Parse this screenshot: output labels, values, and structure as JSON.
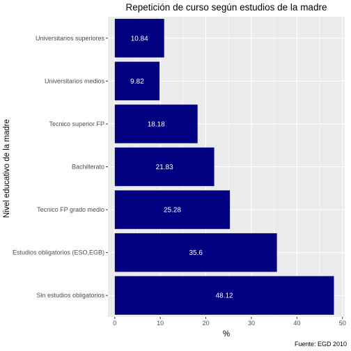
{
  "chart_data": {
    "type": "bar",
    "orientation": "horizontal",
    "title": "Repetición de curso según estudios de la madre",
    "xlabel": "%",
    "ylabel": "Nivel educativo de la madre",
    "caption": "Fuente: EGD 2010",
    "categories": [
      "Universitarios superiores",
      "Universitarios medios",
      "Tecnico superior FP",
      "Bachillerato",
      "Tecnico FP grado medio",
      "Estudios obligatorios (ESO,EGB)",
      "Sin estudios obligatorios"
    ],
    "values": [
      10.84,
      9.82,
      18.18,
      21.83,
      25.28,
      35.6,
      48.12
    ],
    "value_labels": [
      "10.84",
      "9.82",
      "18.18",
      "21.83",
      "25.28",
      "35.6",
      "48.12"
    ],
    "xlim": [
      -1.5,
      50.5
    ],
    "xticks": [
      0,
      10,
      20,
      30,
      40,
      50
    ],
    "xtick_labels": [
      "0",
      "10",
      "20",
      "30",
      "40",
      "50"
    ],
    "grid": true,
    "bar_color": "#000080",
    "panel_color": "#ebebeb",
    "grid_color": "#ffffff"
  }
}
